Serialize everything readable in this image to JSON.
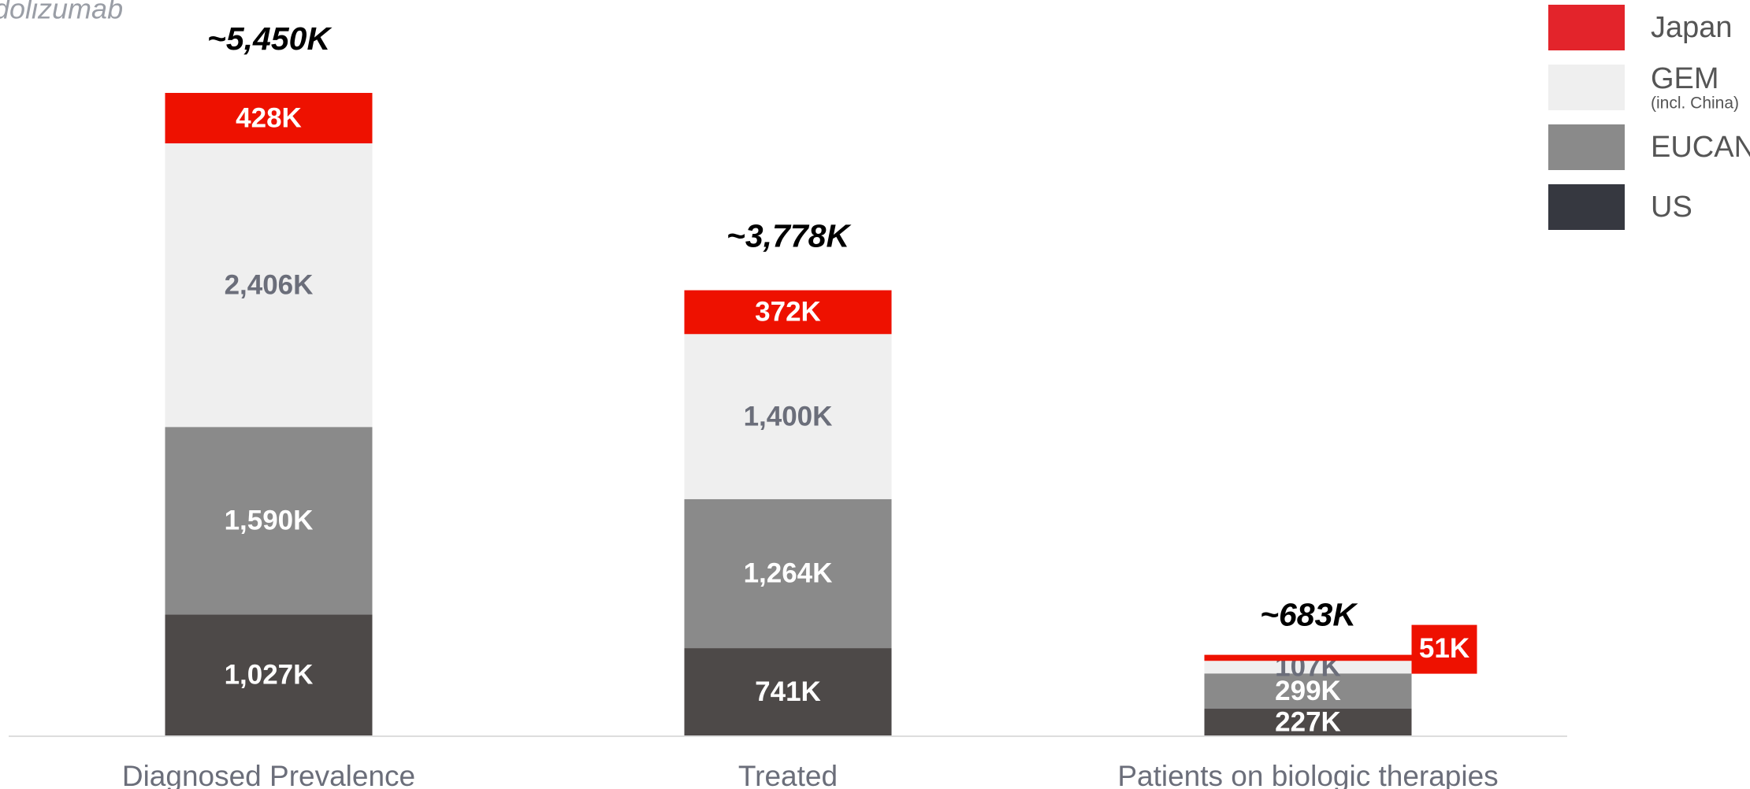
{
  "chart_data": {
    "type": "stacked_bar",
    "subtitle": "dolizumab",
    "categories": [
      "Diagnosed Prevalence",
      "Treated",
      "Patients on biologic therapies"
    ],
    "series": [
      {
        "name": "US",
        "color": "#4d4948",
        "label_color": "#ffffff",
        "values": [
          1027,
          741,
          227
        ],
        "value_labels": [
          "1,027K",
          "741K",
          "227K"
        ]
      },
      {
        "name": "EUCAN",
        "color": "#8a8a8a",
        "label_color": "#ffffff",
        "values": [
          1590,
          1264,
          299
        ],
        "value_labels": [
          "1,590K",
          "1,264K",
          "299K"
        ]
      },
      {
        "name": "GEM",
        "note": "(incl. China)",
        "color": "#efefef",
        "label_color": "#6b6e7a",
        "values": [
          2406,
          1400,
          107
        ],
        "value_labels": [
          "2,406K",
          "1,400K",
          "107K"
        ]
      },
      {
        "name": "Japan",
        "color": "#ee1100",
        "label_color": "#ffffff",
        "values": [
          428,
          372,
          51
        ],
        "value_labels": [
          "428K",
          "372K",
          "51K"
        ]
      }
    ],
    "totals": [
      "~5,450K",
      "~3,778K",
      "~683K"
    ]
  }
}
